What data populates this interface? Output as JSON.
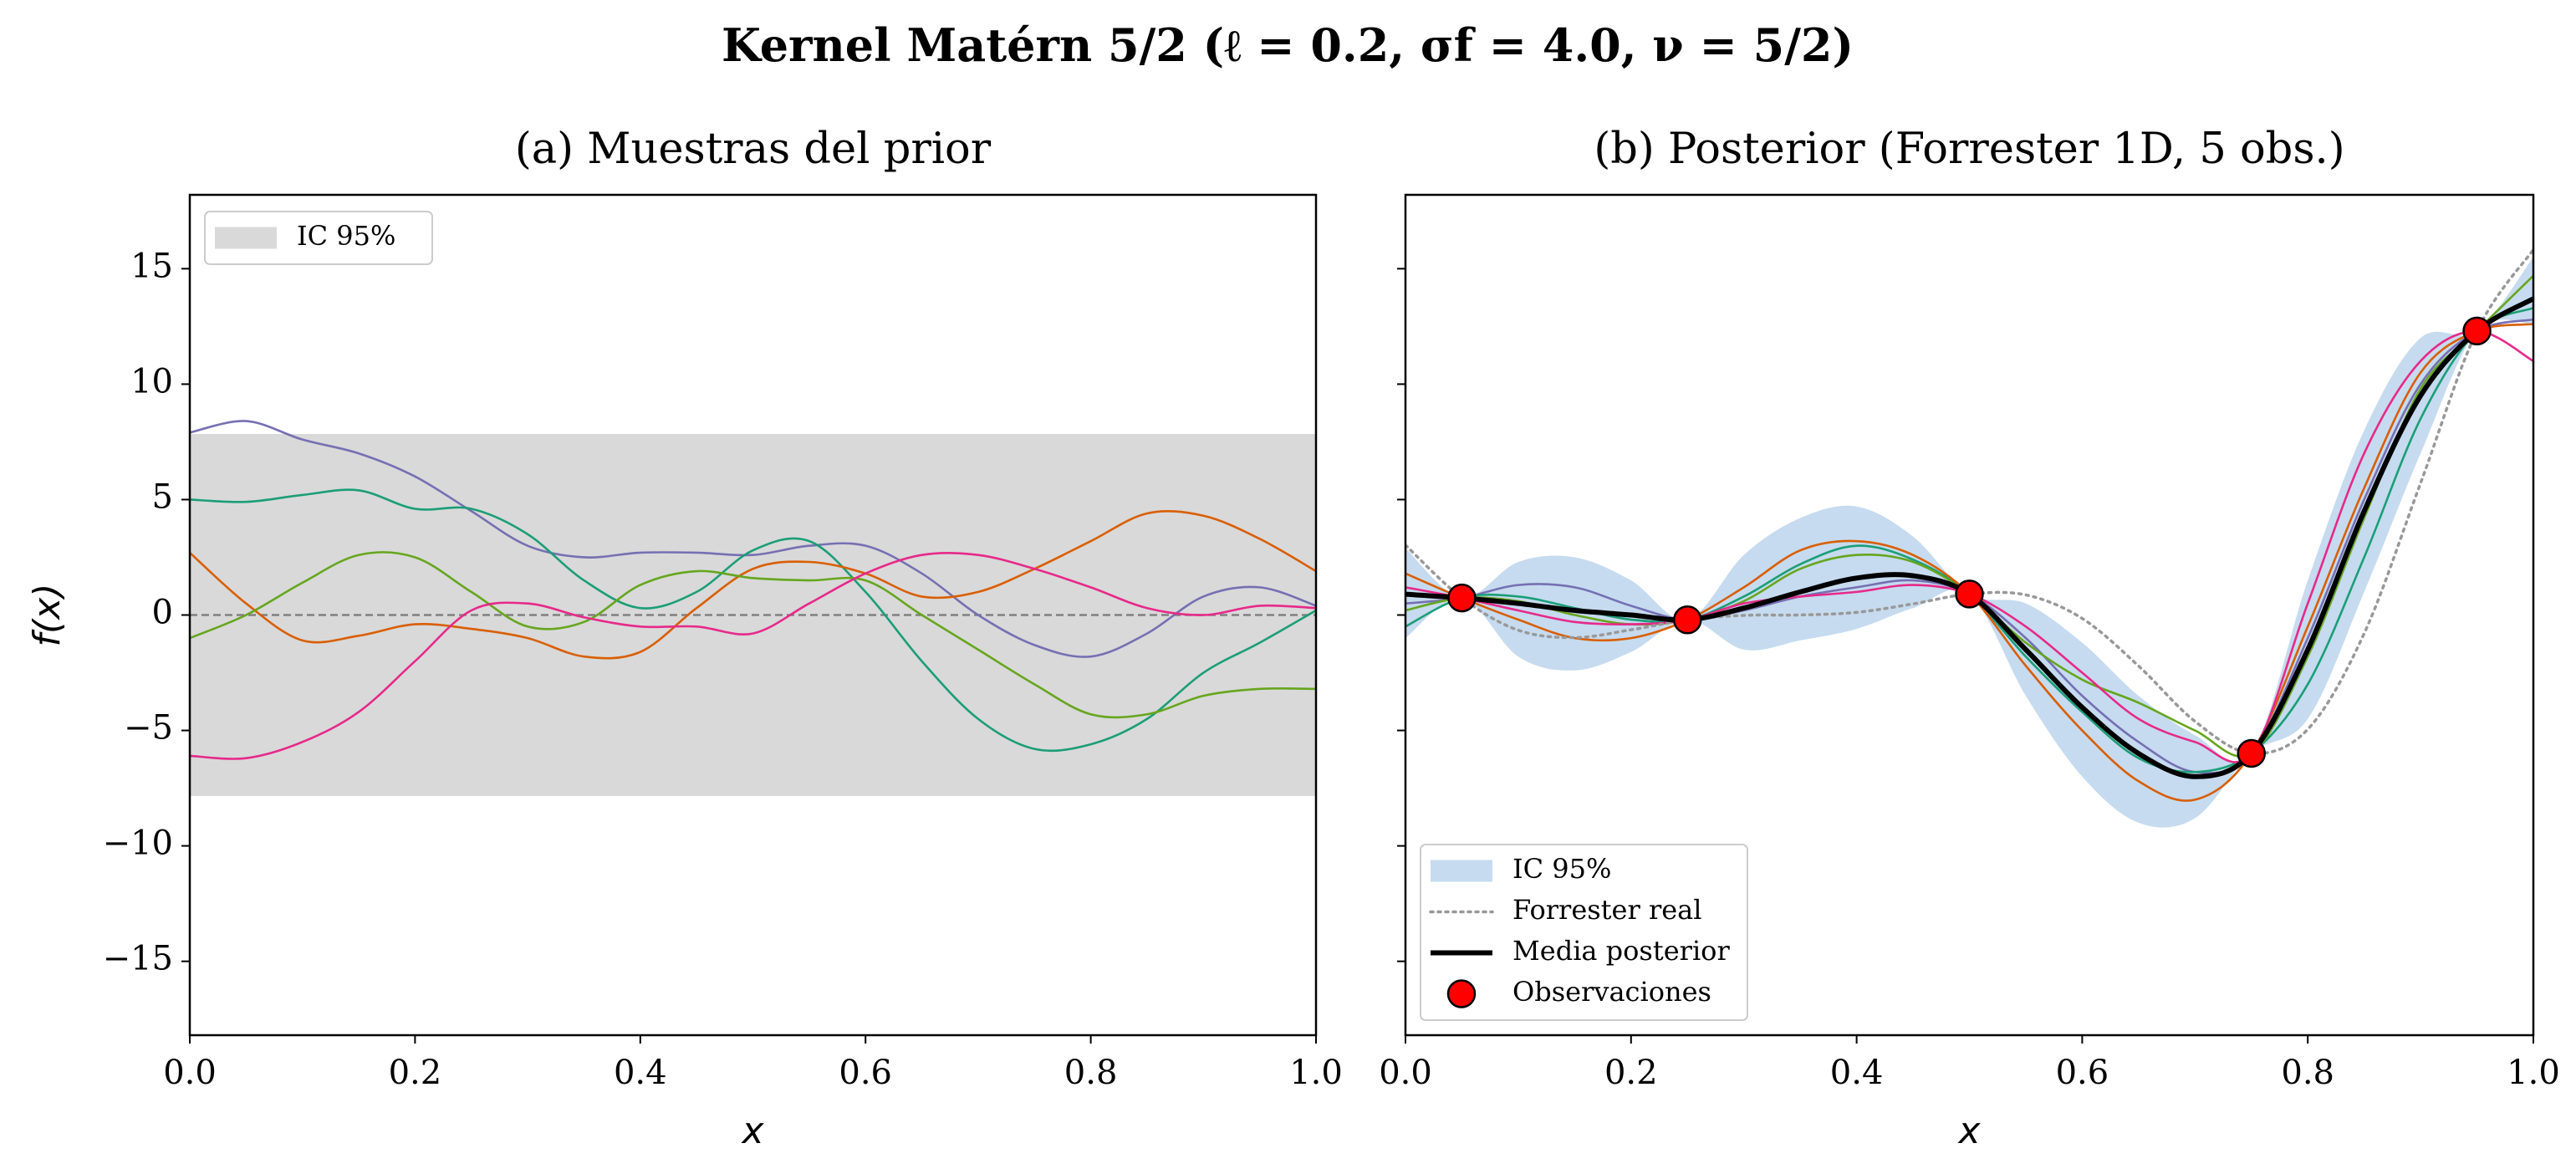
{
  "title": "Kernel Matérn 5/2  (ℓ = 0.2,  σf = 4.0,  ν = 5/2)",
  "chart_data": [
    {
      "type": "line",
      "title": "(a) Muestras del prior",
      "xlabel": "x",
      "ylabel": "f(x)",
      "xlim": [
        0,
        1
      ],
      "ylim": [
        -18.2,
        18.2
      ],
      "xticks": [
        {
          "value": 0,
          "label": "0.0"
        },
        0.2,
        0.4,
        0.6,
        0.8,
        {
          "value": 1,
          "label": "1.0"
        }
      ],
      "yticks": [
        {
          "value": -15,
          "label": "−15"
        },
        {
          "value": -10,
          "label": "−10"
        },
        {
          "value": -5,
          "label": "−5"
        },
        0,
        5,
        10,
        15
      ],
      "legend": "upper left",
      "band": {
        "name": "IC 95%",
        "color": "#d9d9d9",
        "lower": -7.84,
        "upper": 7.84
      },
      "reference_line": 0,
      "x": [
        0,
        0.05,
        0.1,
        0.15,
        0.2,
        0.25,
        0.3,
        0.35,
        0.4,
        0.45,
        0.5,
        0.55,
        0.6,
        0.65,
        0.7,
        0.75,
        0.8,
        0.85,
        0.9,
        0.95,
        1
      ],
      "series": [
        {
          "color": "#7570b3",
          "values": [
            7.9,
            8.4,
            7.6,
            7.0,
            6.0,
            4.5,
            3.0,
            2.5,
            2.7,
            2.7,
            2.6,
            3.0,
            3.0,
            1.8,
            0,
            -1.3,
            -1.8,
            -0.8,
            0.8,
            1.2,
            0.4
          ]
        },
        {
          "color": "#1b9e77",
          "values": [
            5.0,
            4.9,
            5.2,
            5.4,
            4.6,
            4.6,
            3.5,
            1.5,
            0.3,
            1.0,
            2.8,
            3.2,
            1.0,
            -2.0,
            -4.5,
            -5.8,
            -5.6,
            -4.5,
            -2.5,
            -1.2,
            0.2
          ]
        },
        {
          "color": "#d95f02",
          "values": [
            2.7,
            0.5,
            -1.1,
            -0.9,
            -0.4,
            -0.6,
            -1.0,
            -1.8,
            -1.6,
            0.3,
            2.0,
            2.3,
            1.8,
            0.8,
            1.0,
            2.0,
            3.2,
            4.4,
            4.3,
            3.3,
            1.9
          ]
        },
        {
          "color": "#66a61e",
          "values": [
            -1.0,
            0,
            1.4,
            2.6,
            2.5,
            1.0,
            -0.5,
            -0.3,
            1.3,
            1.9,
            1.6,
            1.5,
            1.5,
            0,
            -1.5,
            -3.0,
            -4.3,
            -4.3,
            -3.5,
            -3.2,
            -3.2
          ]
        },
        {
          "color": "#e7298a",
          "values": [
            -6.1,
            -6.2,
            -5.5,
            -4.2,
            -2.0,
            0.2,
            0.5,
            -0.1,
            -0.5,
            -0.5,
            -0.8,
            0.5,
            1.8,
            2.6,
            2.6,
            2.0,
            1.2,
            0.3,
            0,
            0.4,
            0.3
          ]
        }
      ]
    },
    {
      "type": "line",
      "title": "(b) Posterior (Forrester 1D, 5 obs.)",
      "xlabel": "x",
      "xlim": [
        0,
        1
      ],
      "ylim": [
        -18.2,
        18.2
      ],
      "sharey": true,
      "xticks": [
        {
          "value": 0,
          "label": "0.0"
        },
        0.2,
        0.4,
        0.6,
        0.8,
        {
          "value": 1,
          "label": "1.0"
        }
      ],
      "legend": "lower left",
      "x": [
        0,
        0.05,
        0.1,
        0.15,
        0.2,
        0.25,
        0.3,
        0.35,
        0.4,
        0.45,
        0.5,
        0.55,
        0.6,
        0.65,
        0.7,
        0.75,
        0.8,
        0.85,
        0.9,
        0.95,
        1
      ],
      "band": {
        "name": "IC 95%",
        "color": "#c6dbef",
        "lower": [
          -1.0,
          0.74,
          -1.8,
          -2.4,
          -1.6,
          -0.21,
          -1.5,
          -1.1,
          -0.6,
          0.3,
          0.91,
          -3.5,
          -7.0,
          -9.0,
          -8.8,
          -5.99,
          -4.5,
          1.0,
          7.0,
          12.3,
          12.6
        ],
        "upper": [
          2.9,
          0.74,
          2.3,
          2.5,
          1.5,
          -0.21,
          2.6,
          4.2,
          4.7,
          3.4,
          0.91,
          0.5,
          -1.2,
          -3.5,
          -5.2,
          -5.99,
          1.5,
          8.0,
          12.0,
          12.3,
          15.5
        ]
      },
      "series": [
        {
          "color": "#7570b3",
          "values": [
            0.5,
            0.74,
            1.3,
            1.2,
            0.4,
            -0.21,
            0.2,
            0.8,
            1.2,
            1.5,
            0.91,
            -1.0,
            -3.5,
            -5.5,
            -6.8,
            -5.99,
            -1.0,
            5.0,
            10.0,
            12.3,
            12.8
          ]
        },
        {
          "color": "#1b9e77",
          "values": [
            -0.5,
            0.74,
            0.8,
            0.3,
            -0.2,
            -0.21,
            0.8,
            2.2,
            3.0,
            2.4,
            0.91,
            -1.8,
            -4.2,
            -6.2,
            -6.8,
            -5.99,
            -3.0,
            2.5,
            8.5,
            12.3,
            13.3
          ]
        },
        {
          "color": "#d95f02",
          "values": [
            1.8,
            0.74,
            -0.2,
            -1.0,
            -1.0,
            -0.21,
            1.2,
            2.8,
            3.2,
            2.6,
            0.91,
            -2.2,
            -5.0,
            -7.2,
            -8.0,
            -5.99,
            -0.5,
            5.5,
            10.5,
            12.3,
            12.6
          ]
        },
        {
          "color": "#66a61e",
          "values": [
            0.2,
            0.74,
            0.6,
            0.0,
            -0.4,
            -0.21,
            0.6,
            2.0,
            2.6,
            2.3,
            0.91,
            -1.2,
            -2.8,
            -3.8,
            -5.0,
            -5.99,
            -1.8,
            4.2,
            9.8,
            12.3,
            14.7
          ]
        },
        {
          "color": "#e7298a",
          "values": [
            1.2,
            0.74,
            0.2,
            -0.3,
            -0.4,
            -0.21,
            0.5,
            0.8,
            1.0,
            1.3,
            0.91,
            -0.5,
            -2.5,
            -4.5,
            -5.5,
            -5.99,
            0.5,
            7.0,
            11.0,
            12.3,
            11.0
          ]
        },
        {
          "name": "Forrester real",
          "color": "#999999",
          "style": "dotted",
          "values": [
            3.03,
            0.738,
            -0.657,
            -0.978,
            -0.64,
            -0.21,
            -0.016,
            0.002,
            0.115,
            0.483,
            0.909,
            0.871,
            -0.149,
            -2.209,
            -4.606,
            -5.993,
            -4.949,
            -0.799,
            5.712,
            12.303,
            15.83
          ]
        },
        {
          "name": "Media posterior",
          "color": "#000000",
          "width": 3,
          "values": [
            0.9,
            0.74,
            0.5,
            0.2,
            0,
            -0.21,
            0.3,
            1.0,
            1.6,
            1.7,
            0.91,
            -1.5,
            -4.0,
            -6.0,
            -7.0,
            -5.99,
            -1.5,
            4.5,
            9.5,
            12.3,
            13.7
          ]
        }
      ],
      "scatter": {
        "name": "Observaciones",
        "color": "#ff0000",
        "x": [
          0.05,
          0.25,
          0.5,
          0.75,
          0.95
        ],
        "y": [
          0.738,
          -0.21,
          0.909,
          -5.993,
          12.303
        ]
      }
    }
  ]
}
